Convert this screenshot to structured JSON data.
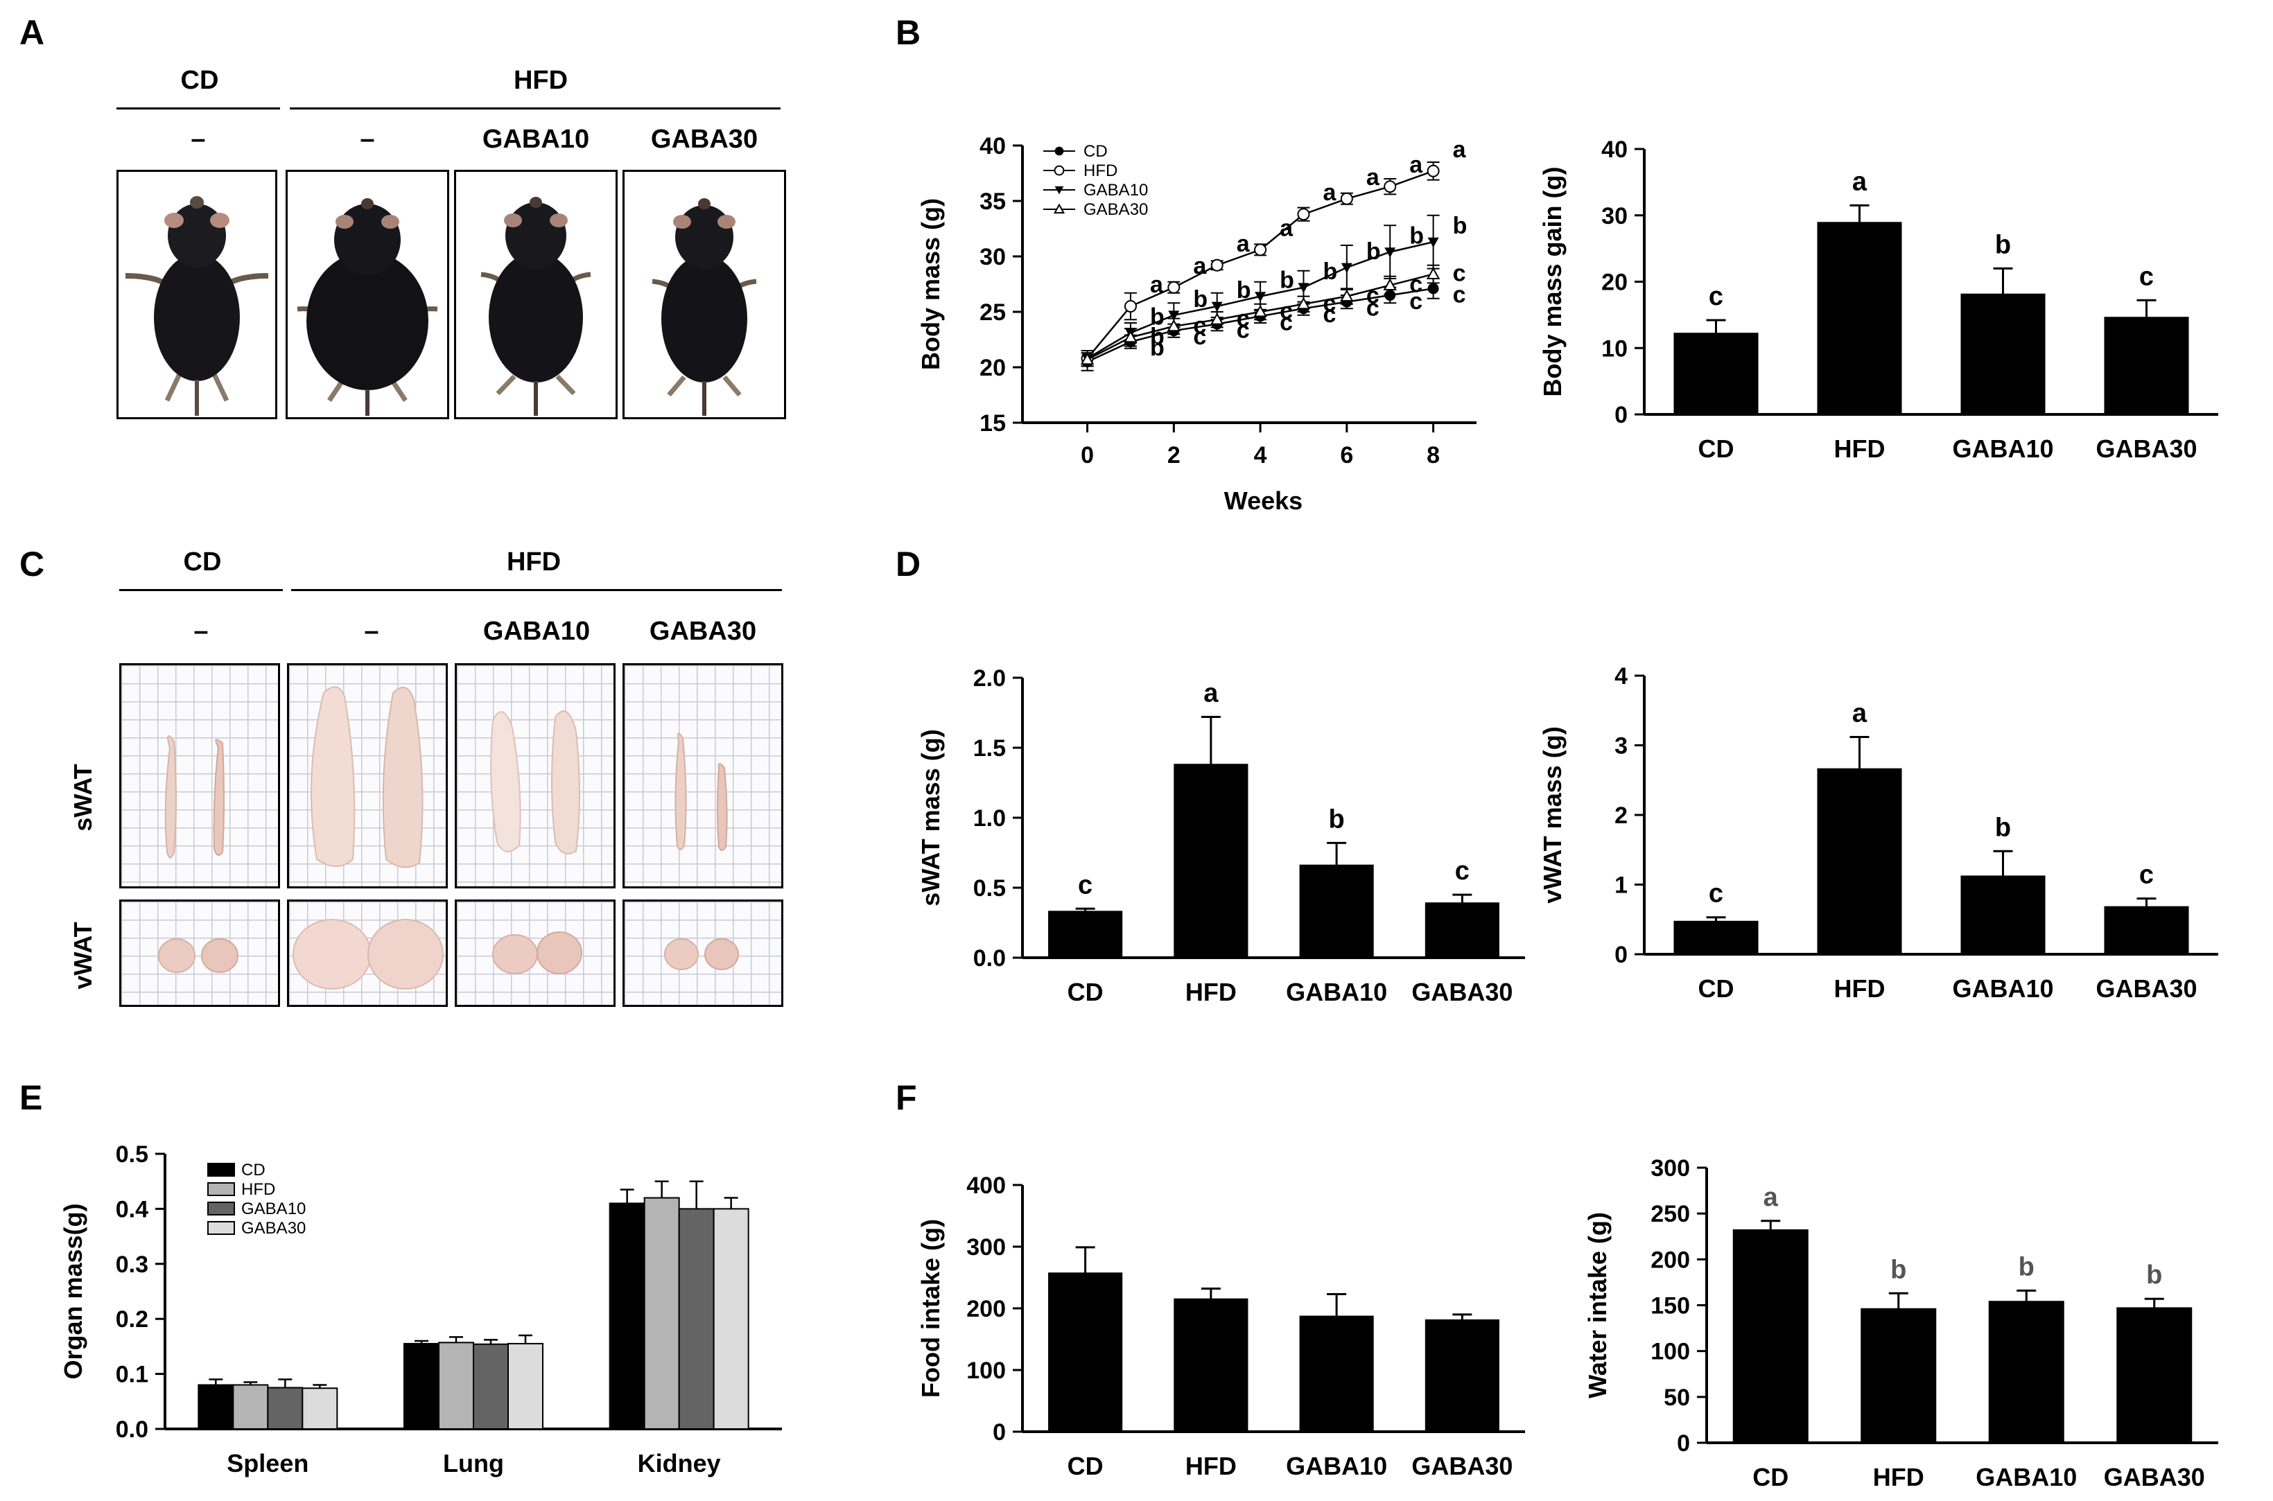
{
  "panels": {
    "A": "A",
    "B": "B",
    "C": "C",
    "D": "D",
    "E": "E",
    "F": "F"
  },
  "photo_groups": {
    "cd": "CD",
    "hfd": "HFD",
    "cd_sub": "–",
    "hfd_sub": "–",
    "gaba10": "GABA10",
    "gaba30": "GABA30"
  },
  "tissue_labels": {
    "swat": "sWAT",
    "vwat": "vWAT"
  },
  "colors": {
    "bar": "#000000",
    "hfd_bar": "#b4b4b4",
    "gaba10_bar": "#646464",
    "gaba30_bar": "#dcdcdc",
    "mouse": "#121215",
    "fat": "#ecd2c8"
  },
  "icons": {
    "mouse": "mouse-photo",
    "fat": "fat-tissue-photo"
  },
  "chart_data": [
    {
      "id": "body_mass_line",
      "type": "line",
      "title": "",
      "xlabel": "Weeks",
      "ylabel": "Body mass (g)",
      "xlim": [
        -1.5,
        9
      ],
      "ylim": [
        15,
        40
      ],
      "xticks": [
        0,
        2,
        4,
        6,
        8
      ],
      "yticks": [
        15,
        20,
        25,
        30,
        35,
        40
      ],
      "x": [
        0,
        1,
        2,
        3,
        4,
        5,
        6,
        7,
        8
      ],
      "legend": [
        "CD",
        "HFD",
        "GABA10",
        "GABA30"
      ],
      "series": [
        {
          "name": "CD",
          "marker": "filled-circle",
          "values": [
            20.5,
            22.3,
            23.3,
            23.9,
            24.6,
            25.3,
            25.9,
            26.5,
            27.1
          ],
          "errors": [
            0.8,
            0.6,
            0.6,
            0.6,
            0.6,
            0.6,
            0.6,
            0.7,
            0.9
          ],
          "letters": [
            "",
            "b",
            "c",
            "c",
            "c",
            "c",
            "c",
            "c",
            "c"
          ]
        },
        {
          "name": "HFD",
          "marker": "open-circle",
          "values": [
            20.8,
            25.5,
            27.2,
            29.2,
            30.6,
            33.8,
            35.2,
            36.3,
            37.7
          ],
          "errors": [
            0.7,
            1.2,
            0.5,
            0.4,
            0.5,
            0.6,
            0.5,
            0.7,
            0.8
          ],
          "letters": [
            "",
            "a",
            "a",
            "a",
            "a",
            "a",
            "a",
            "a",
            "a"
          ]
        },
        {
          "name": "GABA10",
          "marker": "filled-triangle-down",
          "values": [
            20.8,
            23.1,
            24.7,
            25.5,
            26.4,
            27.2,
            29.0,
            30.4,
            31.3
          ],
          "errors": [
            0.7,
            0.9,
            1.1,
            1.2,
            1.3,
            1.5,
            2.0,
            2.4,
            2.4
          ],
          "letters": [
            "",
            "b",
            "b",
            "b",
            "b",
            "b",
            "b",
            "b",
            "b"
          ]
        },
        {
          "name": "GABA30",
          "marker": "open-triangle-up",
          "values": [
            20.7,
            22.7,
            23.7,
            24.3,
            25.0,
            25.7,
            26.4,
            27.4,
            28.4
          ],
          "errors": [
            0.6,
            0.8,
            0.7,
            0.7,
            0.7,
            0.7,
            0.7,
            0.8,
            0.8
          ],
          "letters": [
            "",
            "b",
            "c",
            "c",
            "c",
            "c",
            "c",
            "c",
            "c"
          ]
        }
      ],
      "top_letters": {
        "HFD": "a",
        "GABA10": "b",
        "CD": "c",
        "GABA30": "c"
      }
    },
    {
      "id": "body_mass_gain",
      "type": "bar",
      "ylabel": "Body mass gain (g)",
      "ylim": [
        0,
        40
      ],
      "yticks": [
        0,
        10,
        20,
        30,
        40
      ],
      "categories": [
        "CD",
        "HFD",
        "GABA10",
        "GABA30"
      ],
      "values": [
        12.2,
        28.9,
        18.1,
        14.6
      ],
      "errors": [
        2.0,
        2.6,
        3.9,
        2.6
      ],
      "letters": [
        "c",
        "a",
        "b",
        "c"
      ]
    },
    {
      "id": "swat_mass",
      "type": "bar",
      "ylabel": "sWAT mass (g)",
      "ylim": [
        0,
        2.0
      ],
      "yticks": [
        "0.0",
        "0.5",
        "1.0",
        "1.5",
        "2.0"
      ],
      "categories": [
        "CD",
        "HFD",
        "GABA10",
        "GABA30"
      ],
      "values": [
        0.33,
        1.38,
        0.66,
        0.39
      ],
      "errors": [
        0.02,
        0.34,
        0.16,
        0.06
      ],
      "letters": [
        "c",
        "a",
        "b",
        "c"
      ]
    },
    {
      "id": "vwat_mass",
      "type": "bar",
      "ylabel": "vWAT mass (g)",
      "ylim": [
        0,
        4
      ],
      "yticks": [
        0,
        1,
        2,
        3,
        4
      ],
      "categories": [
        "CD",
        "HFD",
        "GABA10",
        "GABA30"
      ],
      "values": [
        0.47,
        2.66,
        1.12,
        0.68
      ],
      "errors": [
        0.06,
        0.46,
        0.36,
        0.12
      ],
      "letters": [
        "c",
        "a",
        "b",
        "c"
      ]
    },
    {
      "id": "organ_mass",
      "type": "bar",
      "ylabel": "Organ mass(g)",
      "ylim": [
        0,
        0.5
      ],
      "yticks": [
        "0.0",
        "0.1",
        "0.2",
        "0.3",
        "0.4",
        "0.5"
      ],
      "categories": [
        "Spleen",
        "Lung",
        "Kidney"
      ],
      "legend_position": "top-left",
      "series": [
        {
          "name": "CD",
          "values": [
            0.08,
            0.155,
            0.41
          ],
          "errors": [
            0.01,
            0.005,
            0.025
          ]
        },
        {
          "name": "HFD",
          "values": [
            0.08,
            0.157,
            0.42
          ],
          "errors": [
            0.005,
            0.01,
            0.03
          ]
        },
        {
          "name": "GABA10",
          "values": [
            0.075,
            0.154,
            0.4
          ],
          "errors": [
            0.015,
            0.008,
            0.05
          ]
        },
        {
          "name": "GABA30",
          "values": [
            0.074,
            0.155,
            0.4
          ],
          "errors": [
            0.006,
            0.015,
            0.02
          ]
        }
      ]
    },
    {
      "id": "food_intake",
      "type": "bar",
      "ylabel": "Food intake (g)",
      "ylim": [
        0,
        400
      ],
      "yticks": [
        0,
        100,
        200,
        300,
        400
      ],
      "categories": [
        "CD",
        "HFD",
        "GABA10",
        "GABA30"
      ],
      "values": [
        257,
        215,
        187,
        181
      ],
      "errors": [
        42,
        17,
        36,
        9
      ],
      "letters": [
        "",
        "",
        "",
        ""
      ]
    },
    {
      "id": "water_intake",
      "type": "bar",
      "ylabel": "Water intake (g)",
      "ylim": [
        0,
        300
      ],
      "yticks": [
        0,
        50,
        100,
        150,
        200,
        250,
        300
      ],
      "categories": [
        "CD",
        "HFD",
        "GABA10",
        "GABA30"
      ],
      "values": [
        232,
        146,
        154,
        147
      ],
      "errors": [
        10,
        17,
        12,
        10
      ],
      "letters": [
        "a",
        "b",
        "b",
        "b"
      ],
      "letter_color": "#555555"
    }
  ]
}
